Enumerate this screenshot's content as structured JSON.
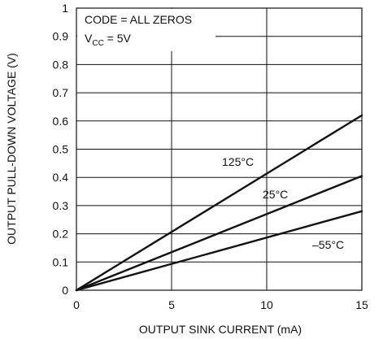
{
  "chart_data": {
    "type": "line",
    "title": "",
    "xlabel": "OUTPUT SINK CURRENT (mA)",
    "ylabel": "OUTPUT PULL-DOWN VOLTAGE (V)",
    "xlim": [
      0,
      15
    ],
    "ylim": [
      0,
      1
    ],
    "xticks": [
      0,
      5,
      10,
      15
    ],
    "yticks": [
      0,
      0.1,
      0.2,
      0.3,
      0.4,
      0.5,
      0.6,
      0.7,
      0.8,
      0.9,
      1
    ],
    "xtick_labels": [
      "0",
      "5",
      "10",
      "15"
    ],
    "ytick_labels": [
      "0",
      "0.1",
      "0.2",
      "0.3",
      "0.4",
      "0.5",
      "0.6",
      "0.7",
      "0.8",
      "0.9",
      "1"
    ],
    "grid": true,
    "annotation": {
      "line1": "CODE = ALL ZEROS",
      "line2_main": "V",
      "line2_sub": "CC",
      "line2_rest": " = 5V"
    },
    "series": [
      {
        "name": "125°C",
        "x": [
          0,
          15
        ],
        "y": [
          0,
          0.62
        ]
      },
      {
        "name": "25°C",
        "x": [
          0,
          15
        ],
        "y": [
          0,
          0.405
        ]
      },
      {
        "name": "–55°C",
        "x": [
          0,
          15
        ],
        "y": [
          0,
          0.28
        ]
      }
    ],
    "colors": {
      "line": "#111111",
      "grid": "#111111",
      "background": "#ffffff"
    }
  }
}
